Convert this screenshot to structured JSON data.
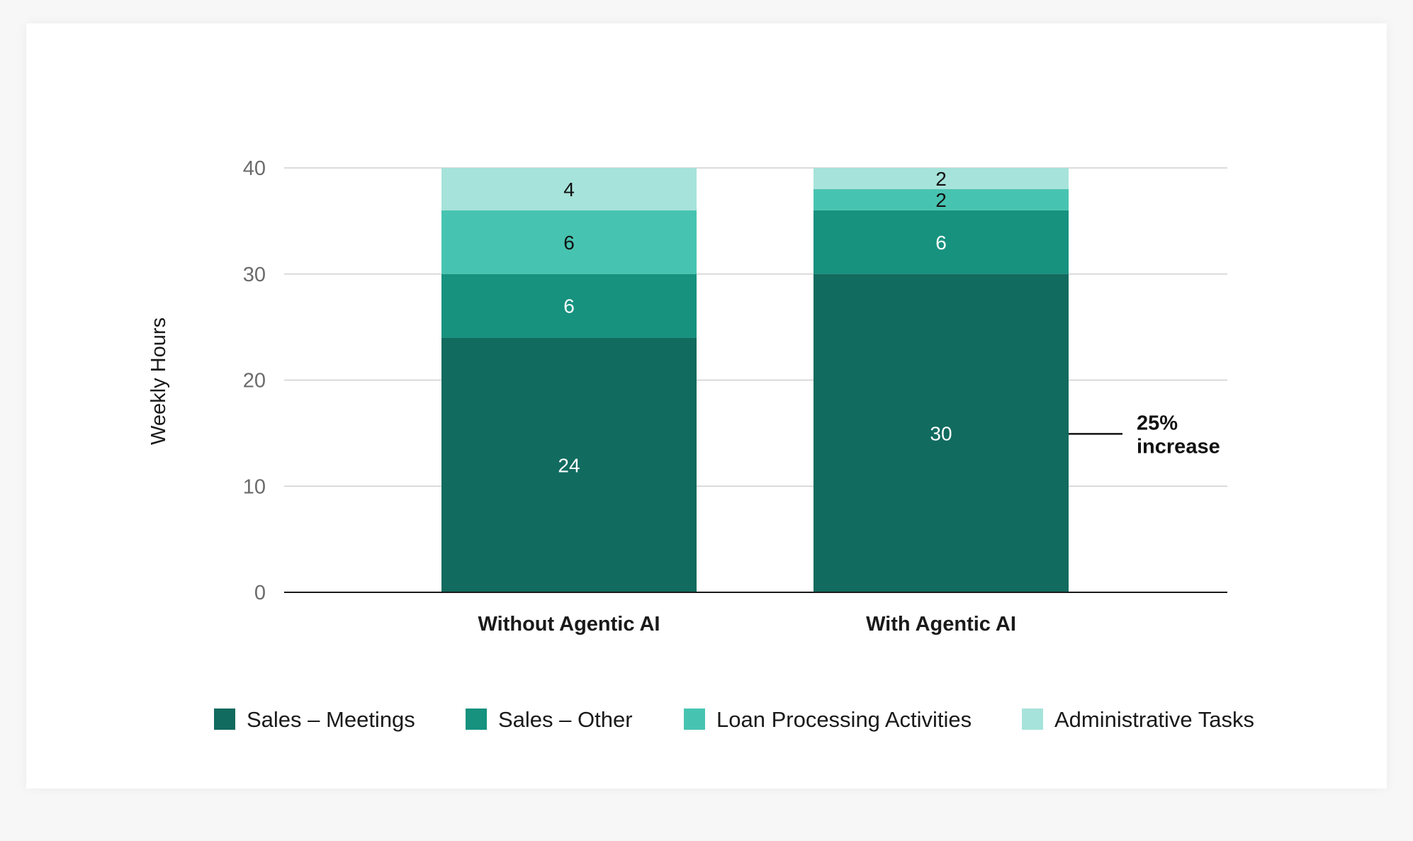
{
  "chart_data": {
    "type": "bar",
    "stacked": true,
    "categories": [
      "Without Agentic AI",
      "With Agentic AI"
    ],
    "series": [
      {
        "name": "Sales – Meetings",
        "values": [
          24,
          30
        ],
        "color": "#116b5f",
        "label_color": "#ffffff"
      },
      {
        "name": "Sales – Other",
        "values": [
          6,
          6
        ],
        "color": "#16927f",
        "label_color": "#ffffff"
      },
      {
        "name": "Loan Processing Activities",
        "values": [
          6,
          2
        ],
        "color": "#47c4b1",
        "label_color": "#111111"
      },
      {
        "name": "Administrative Tasks",
        "values": [
          4,
          2
        ],
        "color": "#a6e3da",
        "label_color": "#111111"
      }
    ],
    "ylabel": "Weekly Hours",
    "xlabel": "",
    "ylim": [
      0,
      40
    ],
    "yticks": [
      0,
      10,
      20,
      30,
      40
    ],
    "grid": true,
    "legend_position": "bottom",
    "annotation": {
      "line1": "25%",
      "line2": "increase",
      "category_index": 1,
      "series_index": 0
    }
  }
}
